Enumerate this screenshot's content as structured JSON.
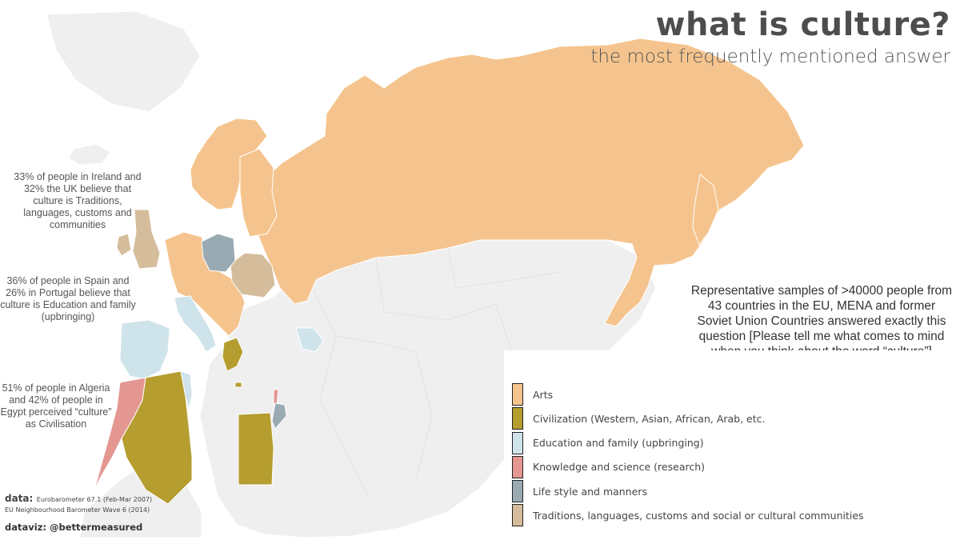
{
  "title": "what is culture?",
  "subtitle": "the most frequently mentioned answer",
  "notes": {
    "ireland_uk": "33% of people in Ireland and 32% the UK believe that culture is Traditions, languages, customs and communities",
    "spain_portugal": "36% of people in Spain and 26% in Portugal believe that culture is Education and family (upbringing)",
    "algeria_egypt": "51% of people in Algeria and 42% of people in Egypt perceived “culture” as Civilisation"
  },
  "description": "Representative samples of >40000 people from 43 countries in the EU, MENA and former Soviet Union Countries answered exactly this question [Please tell me what comes to mind when you think about the word “culture”]",
  "legend": [
    {
      "label": "Arts",
      "color": "#f5c48e"
    },
    {
      "label": "Civilization (Western, Asian, African, Arab, etc.",
      "color": "#b59d2f"
    },
    {
      "label": "Education and family (upbringing)",
      "color": "#cfe3ea"
    },
    {
      "label": "Knowledge and science (research)",
      "color": "#e39790"
    },
    {
      "label": "Life style and manners",
      "color": "#99aab3"
    },
    {
      "label": "Traditions, languages, customs and social or cultural communities",
      "color": "#d5bd9c"
    }
  ],
  "base_color": "#efefef",
  "source": {
    "label": "data:",
    "line1": "Eurobarometer 67.1 (Feb-Mar 2007)",
    "line2": "EU Neighbourhood Barometer Wave 6 (2014)"
  },
  "credit": "dataviz: @bettermeasured"
}
